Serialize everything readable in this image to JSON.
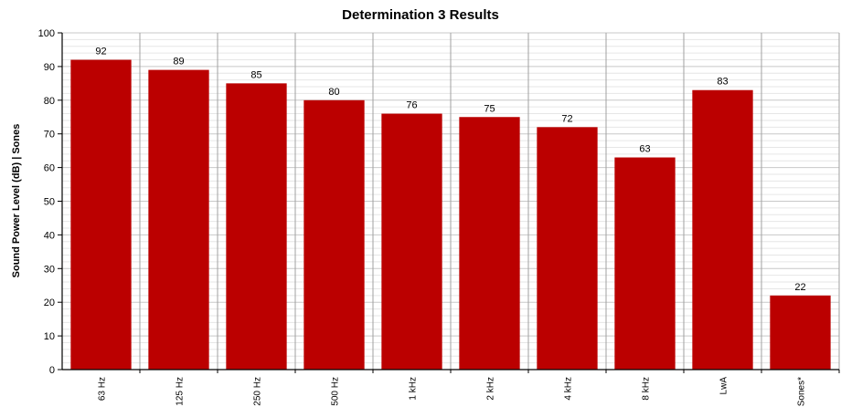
{
  "chart_data": {
    "type": "bar",
    "title": "Determination 3 Results",
    "xlabel": "",
    "ylabel": "Sound Power Level (dB) | Sones",
    "ylim": [
      0,
      100
    ],
    "yticks": [
      0,
      10,
      20,
      30,
      40,
      50,
      60,
      70,
      80,
      90,
      100
    ],
    "grid": true,
    "categories": [
      "63 Hz",
      "125 Hz",
      "250 Hz",
      "500 Hz",
      "1 kHz",
      "2 kHz",
      "4 kHz",
      "8 kHz",
      "LwA",
      "Sones*"
    ],
    "values": [
      92,
      89,
      85,
      80,
      76,
      75,
      72,
      63,
      83,
      22
    ],
    "bar_color": "#bb0000"
  }
}
